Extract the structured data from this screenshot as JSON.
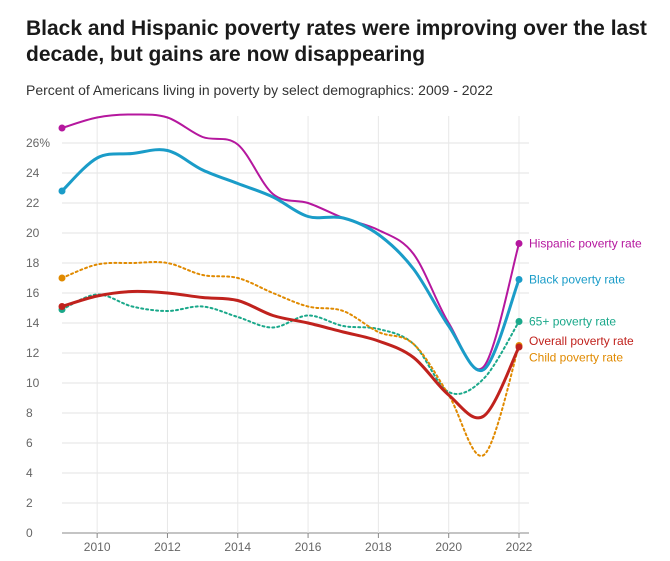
{
  "title": "Black and Hispanic poverty rates were improving over the last decade, but gains are now disappearing",
  "subtitle": "Percent of Americans living in poverty by select demographics: 2009 - 2022",
  "chart_data": {
    "type": "line",
    "x": [
      2009,
      2010,
      2011,
      2012,
      2013,
      2014,
      2015,
      2016,
      2017,
      2018,
      2019,
      2020,
      2021,
      2022
    ],
    "xticks": [
      "2010",
      "2012",
      "2014",
      "2016",
      "2018",
      "2020",
      "2022"
    ],
    "yticks": [
      "0",
      "2",
      "4",
      "6",
      "8",
      "10",
      "12",
      "14",
      "16",
      "18",
      "20",
      "22",
      "24",
      "26%"
    ],
    "xlim": [
      2009,
      2022
    ],
    "ylim": [
      0,
      27
    ],
    "grid": true,
    "series": [
      {
        "name": "Hispanic poverty rate",
        "color": "#b5179e",
        "style": "solid",
        "width": 2,
        "values": [
          27.0,
          27.7,
          27.9,
          27.7,
          26.4,
          25.9,
          22.6,
          22.0,
          21.0,
          20.2,
          18.6,
          14.0,
          11.1,
          19.3
        ]
      },
      {
        "name": "Black poverty rate",
        "color": "#1a9cc8",
        "style": "solid",
        "width": 3,
        "values": [
          22.8,
          25.0,
          25.3,
          25.5,
          24.2,
          23.3,
          22.4,
          21.1,
          21.0,
          19.9,
          17.6,
          13.8,
          10.9,
          16.9
        ]
      },
      {
        "name": "65+ poverty rate",
        "color": "#1aa88a",
        "style": "dotted",
        "width": 2,
        "values": [
          14.9,
          15.9,
          15.1,
          14.8,
          15.1,
          14.4,
          13.7,
          14.5,
          13.8,
          13.6,
          12.6,
          9.4,
          10.3,
          14.1
        ]
      },
      {
        "name": "Child poverty rate",
        "color": "#e08a00",
        "style": "dotted",
        "width": 2,
        "values": [
          17.0,
          17.9,
          18.0,
          18.0,
          17.2,
          17.0,
          16.0,
          15.1,
          14.8,
          13.4,
          12.6,
          9.2,
          5.2,
          12.5
        ]
      },
      {
        "name": "Overall poverty rate",
        "color": "#c0221d",
        "style": "solid",
        "width": 3,
        "values": [
          15.1,
          15.8,
          16.1,
          16.0,
          15.7,
          15.5,
          14.5,
          14.0,
          13.4,
          12.8,
          11.7,
          9.2,
          7.8,
          12.4
        ]
      }
    ],
    "labels": [
      {
        "text": "Hispanic poverty rate",
        "series": 0
      },
      {
        "text": "Black poverty rate",
        "series": 1
      },
      {
        "text": "65+ poverty rate",
        "series": 2
      },
      {
        "text": "Overall poverty rate",
        "series": 4
      },
      {
        "text": "Child poverty rate",
        "series": 3
      }
    ]
  }
}
